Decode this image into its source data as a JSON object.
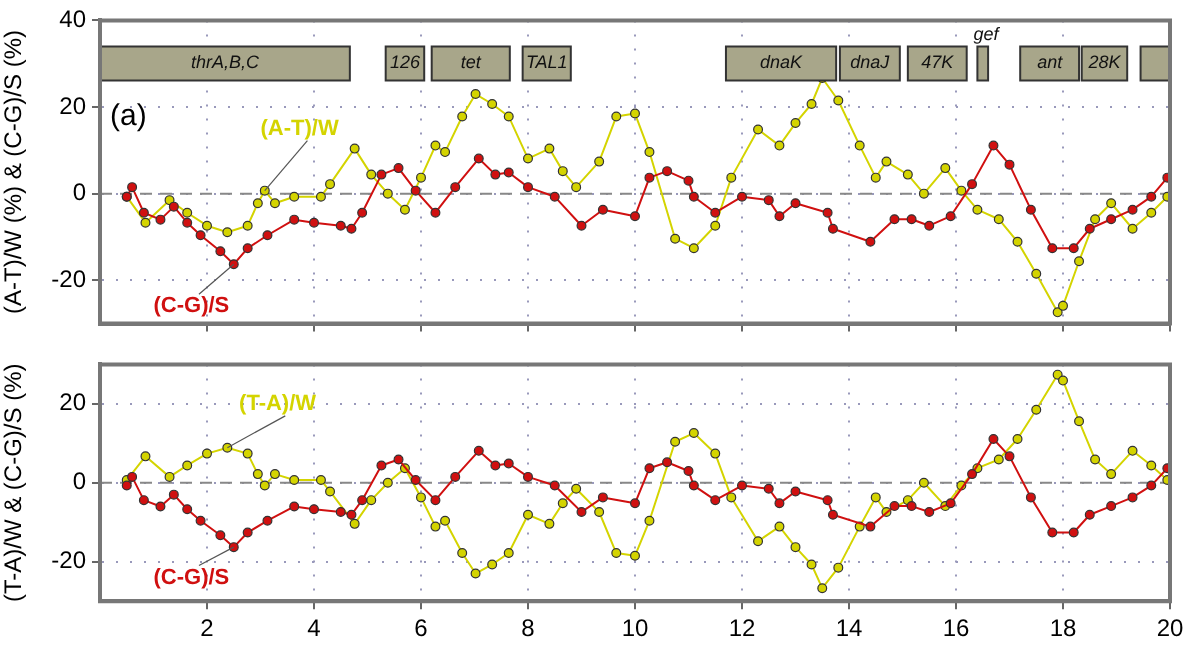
{
  "chart_data": [
    {
      "type": "line",
      "ylabel": "(A-T)/W (%) & (C-G)/S (%)",
      "xlim": [
        0,
        20
      ],
      "xticks": [
        2,
        4,
        6,
        8,
        10,
        12,
        14,
        16,
        18,
        20
      ],
      "ylim": [
        -30,
        40
      ],
      "yticks": [
        -20,
        0,
        20,
        40
      ],
      "tick_labels": "y",
      "grid": true,
      "legend": false,
      "marker": "circle",
      "line_style": "solid",
      "annotations": [
        "(a)"
      ],
      "ref_lines": [
        {
          "axis": "y",
          "value": 0,
          "label": null,
          "color": "#888888",
          "line_style": "dashed"
        }
      ],
      "bands": [
        {
          "axis": "x",
          "from": 0,
          "to": 4.67,
          "label": "thrA,B,C",
          "color": "#a8a68a"
        },
        {
          "axis": "x",
          "from": 5.34,
          "to": 6.06,
          "label": "126",
          "color": "#a8a68a"
        },
        {
          "axis": "x",
          "from": 6.2,
          "to": 7.66,
          "label": "tet",
          "color": "#a8a68a"
        },
        {
          "axis": "x",
          "from": 7.9,
          "to": 8.8,
          "label": "TAL1",
          "color": "#a8a68a"
        },
        {
          "axis": "x",
          "from": 11.7,
          "to": 13.76,
          "label": "dnaK",
          "color": "#a8a68a"
        },
        {
          "axis": "x",
          "from": 13.83,
          "to": 14.95,
          "label": "dnaJ",
          "color": "#a8a68a"
        },
        {
          "axis": "x",
          "from": 15.1,
          "to": 16.2,
          "label": "47K",
          "color": "#a8a68a"
        },
        {
          "axis": "x",
          "from": 16.4,
          "to": 16.6,
          "label": "gef",
          "color": "#a8a68a"
        },
        {
          "axis": "x",
          "from": 17.2,
          "to": 18.3,
          "label": "ant",
          "color": "#a8a68a"
        },
        {
          "axis": "x",
          "from": 18.35,
          "to": 19.2,
          "label": "28K",
          "color": "#a8a68a"
        },
        {
          "axis": "x",
          "from": 19.45,
          "to": 20,
          "label": null,
          "color": "#a8a68a"
        }
      ],
      "series": [
        {
          "name": "(A-T)/W",
          "color": "#d4d400",
          "x": [
            0.5,
            0.85,
            1.3,
            1.63,
            2.0,
            2.38,
            2.76,
            2.95,
            3.08,
            3.27,
            3.63,
            4.13,
            4.3,
            4.76,
            5.07,
            5.38,
            5.7,
            6.0,
            6.27,
            6.45,
            6.77,
            7.02,
            7.33,
            7.64,
            8.0,
            8.4,
            8.65,
            8.9,
            9.33,
            9.65,
            10.0,
            10.27,
            10.75,
            11.1,
            11.5,
            11.8,
            12.3,
            12.7,
            13.0,
            13.3,
            13.5,
            13.8,
            14.2,
            14.5,
            14.7,
            15.1,
            15.4,
            15.8,
            16.1,
            16.4,
            16.8,
            17.15,
            17.5,
            17.9,
            18.0,
            18.3,
            18.6,
            18.9,
            19.3,
            19.65,
            19.95
          ],
          "values": [
            -0.7,
            -6.7,
            -1.5,
            -4.4,
            -7.4,
            -8.9,
            -7.4,
            -2.2,
            0.7,
            -2.2,
            -0.7,
            -0.7,
            2.2,
            10.4,
            4.4,
            0,
            -3.7,
            3.7,
            11.1,
            9.6,
            17.8,
            23,
            20.7,
            17.8,
            8.1,
            10.4,
            5.2,
            1.5,
            7.4,
            17.8,
            18.5,
            9.6,
            -10.4,
            -12.6,
            -7.4,
            3.7,
            14.8,
            11.1,
            16.3,
            20.7,
            26.7,
            21.5,
            11.1,
            3.7,
            7.4,
            4.4,
            0,
            5.9,
            0.7,
            -3.7,
            -5.9,
            -11.1,
            -18.5,
            -27.4,
            -25.9,
            -15.6,
            -5.9,
            -2.2,
            -8.1,
            -4.4,
            -0.7
          ]
        },
        {
          "name": "(C-G)/S",
          "color": "#d01010",
          "x": [
            0.5,
            0.6,
            0.82,
            1.13,
            1.38,
            1.63,
            1.88,
            2.25,
            2.5,
            2.76,
            3.13,
            3.63,
            4.0,
            4.5,
            4.7,
            4.9,
            5.26,
            5.58,
            5.9,
            6.27,
            6.64,
            7.08,
            7.39,
            7.64,
            8.0,
            8.5,
            9.0,
            9.4,
            10.0,
            10.27,
            10.6,
            11.0,
            11.1,
            11.5,
            12.0,
            12.5,
            12.7,
            13.0,
            13.6,
            13.7,
            14.4,
            14.85,
            15.17,
            15.5,
            15.9,
            16.3,
            16.7,
            17.0,
            17.4,
            17.8,
            18.2,
            18.5,
            18.9,
            19.3,
            19.65,
            19.95
          ],
          "values": [
            -0.7,
            1.5,
            -4.4,
            -6,
            -3,
            -6.7,
            -9.6,
            -13.3,
            -16.3,
            -12.6,
            -9.6,
            -6,
            -6.7,
            -7.4,
            -8.1,
            -4.4,
            4.4,
            5.9,
            0.7,
            -4.4,
            1.5,
            8.1,
            4.4,
            4.9,
            1.5,
            -0.7,
            -7.4,
            -3.7,
            -5.2,
            3.7,
            5.2,
            3,
            -0.7,
            -4.4,
            -0.7,
            -1.5,
            -5.2,
            -2.2,
            -4.4,
            -8.1,
            -11.1,
            -5.9,
            -5.9,
            -7.4,
            -5.2,
            2.2,
            11.1,
            6.7,
            -3.7,
            -12.6,
            -12.6,
            -8.1,
            -5.9,
            -3.7,
            -0.7,
            3.7
          ]
        }
      ]
    },
    {
      "type": "line",
      "ylabel": "(T-A)/W & (C-G)/S (%)",
      "xlim": [
        0,
        20
      ],
      "xticks": [
        2,
        4,
        6,
        8,
        10,
        12,
        14,
        16,
        18,
        20
      ],
      "ylim": [
        -30,
        30
      ],
      "yticks": [
        -20,
        0,
        20
      ],
      "grid": true,
      "legend": false,
      "marker": "circle",
      "line_style": "solid",
      "ref_lines": [
        {
          "axis": "y",
          "value": 0,
          "label": null,
          "color": "#888888",
          "line_style": "dashed"
        }
      ],
      "series": [
        {
          "name": "(T-A)/W",
          "color": "#d4d400",
          "x": [
            0.5,
            0.85,
            1.3,
            1.63,
            2.0,
            2.38,
            2.76,
            2.95,
            3.08,
            3.27,
            3.63,
            4.13,
            4.3,
            4.76,
            5.07,
            5.38,
            5.7,
            6.0,
            6.27,
            6.45,
            6.77,
            7.02,
            7.33,
            7.64,
            8.0,
            8.4,
            8.65,
            8.9,
            9.33,
            9.65,
            10.0,
            10.27,
            10.75,
            11.1,
            11.5,
            11.8,
            12.3,
            12.7,
            13.0,
            13.3,
            13.5,
            13.8,
            14.2,
            14.5,
            14.7,
            15.1,
            15.4,
            15.8,
            16.1,
            16.4,
            16.8,
            17.15,
            17.5,
            17.9,
            18.0,
            18.3,
            18.6,
            18.9,
            19.3,
            19.65,
            19.95
          ],
          "values": [
            0.7,
            6.7,
            1.5,
            4.4,
            7.4,
            8.9,
            7.4,
            2.2,
            -0.7,
            2.2,
            0.7,
            0.7,
            -2.2,
            -10.4,
            -4.4,
            0,
            3.7,
            -3.7,
            -11.1,
            -9.6,
            -17.8,
            -23,
            -20.7,
            -17.8,
            -8.1,
            -10.4,
            -5.2,
            -1.5,
            -7.4,
            -17.8,
            -18.5,
            -9.6,
            10.4,
            12.6,
            7.4,
            -3.7,
            -14.8,
            -11.1,
            -16.3,
            -20.7,
            -26.7,
            -21.5,
            -11.1,
            -3.7,
            -7.4,
            -4.4,
            0,
            -5.9,
            -0.7,
            3.7,
            5.9,
            11.1,
            18.5,
            27.4,
            25.9,
            15.6,
            5.9,
            2.2,
            8.1,
            4.4,
            0.7
          ]
        },
        {
          "name": "(C-G)/S",
          "color": "#d01010",
          "x": [
            0.5,
            0.6,
            0.82,
            1.13,
            1.38,
            1.63,
            1.88,
            2.25,
            2.5,
            2.76,
            3.13,
            3.63,
            4.0,
            4.5,
            4.7,
            4.9,
            5.26,
            5.58,
            5.9,
            6.27,
            6.64,
            7.08,
            7.39,
            7.64,
            8.0,
            8.5,
            9.0,
            9.4,
            10.0,
            10.27,
            10.6,
            11.0,
            11.1,
            11.5,
            12.0,
            12.5,
            12.7,
            13.0,
            13.6,
            13.7,
            14.4,
            14.85,
            15.17,
            15.5,
            15.9,
            16.3,
            16.7,
            17.0,
            17.4,
            17.8,
            18.2,
            18.5,
            18.9,
            19.3,
            19.65,
            19.95
          ],
          "values": [
            -0.7,
            1.5,
            -4.4,
            -6,
            -3,
            -6.7,
            -9.6,
            -13.3,
            -16.3,
            -12.6,
            -9.6,
            -6,
            -6.7,
            -7.4,
            -8.1,
            -4.4,
            4.4,
            5.9,
            0.7,
            -4.4,
            1.5,
            8.1,
            4.4,
            4.9,
            1.5,
            -0.7,
            -7.4,
            -3.7,
            -5.2,
            3.7,
            5.2,
            3,
            -0.7,
            -4.4,
            -0.7,
            -1.5,
            -5.2,
            -2.2,
            -4.4,
            -8.1,
            -11.1,
            -5.9,
            -5.9,
            -7.4,
            -5.2,
            2.2,
            11.1,
            6.7,
            -3.7,
            -12.6,
            -12.6,
            -8.1,
            -5.9,
            -3.7,
            -0.7,
            3.7
          ]
        }
      ]
    }
  ]
}
